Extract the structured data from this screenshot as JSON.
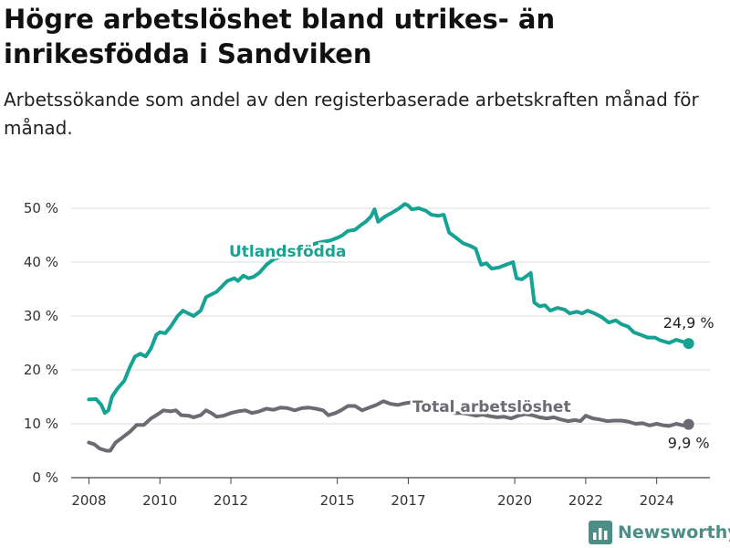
{
  "title": "Högre arbetslöshet bland utrikes- än inrikesfödda i Sandviken",
  "subtitle": "Arbetssökande som andel av den registerbaserade arbetskraften månad för månad.",
  "brand": {
    "name": "Newsworthy",
    "color": "#4a8e86",
    "icon": "bar-chart-logo-icon"
  },
  "chart_data": {
    "type": "line",
    "title": "Högre arbetslöshet bland utrikes- än inrikesfödda i Sandviken",
    "subtitle": "Arbetssökande som andel av den registerbaserade arbetskraften månad för månad.",
    "xlabel": "",
    "ylabel": "",
    "ylim": [
      0,
      50
    ],
    "xlim": [
      2007.5,
      2025.5
    ],
    "y_ticks": [
      0,
      10,
      20,
      30,
      40,
      50
    ],
    "y_tick_labels": [
      "0 %",
      "10 %",
      "20 %",
      "30 %",
      "40 %",
      "50 %"
    ],
    "x_ticks": [
      2008,
      2010,
      2012,
      2015,
      2017,
      2020,
      2022,
      2024
    ],
    "x_tick_labels": [
      "2008",
      "2010",
      "2012",
      "2015",
      "2017",
      "2020",
      "2022",
      "2024"
    ],
    "grid": "horizontal",
    "series": [
      {
        "name": "Utlandsfödda",
        "color": "#16a394",
        "end_label": "24,9 %",
        "points": [
          [
            2008.0,
            14.5
          ],
          [
            2008.2,
            14.6
          ],
          [
            2008.35,
            13.5
          ],
          [
            2008.45,
            12.0
          ],
          [
            2008.55,
            12.5
          ],
          [
            2008.65,
            15.0
          ],
          [
            2008.8,
            16.5
          ],
          [
            2009.0,
            18.0
          ],
          [
            2009.15,
            20.5
          ],
          [
            2009.3,
            22.5
          ],
          [
            2009.45,
            23.0
          ],
          [
            2009.6,
            22.5
          ],
          [
            2009.75,
            24.0
          ],
          [
            2009.9,
            26.5
          ],
          [
            2010.0,
            27.0
          ],
          [
            2010.15,
            26.8
          ],
          [
            2010.3,
            28.0
          ],
          [
            2010.5,
            30.0
          ],
          [
            2010.65,
            31.0
          ],
          [
            2010.8,
            30.5
          ],
          [
            2010.95,
            30.0
          ],
          [
            2011.15,
            31.0
          ],
          [
            2011.3,
            33.5
          ],
          [
            2011.45,
            34.0
          ],
          [
            2011.6,
            34.5
          ],
          [
            2011.75,
            35.5
          ],
          [
            2011.9,
            36.5
          ],
          [
            2012.1,
            37.0
          ],
          [
            2012.2,
            36.5
          ],
          [
            2012.35,
            37.5
          ],
          [
            2012.5,
            37.0
          ],
          [
            2012.65,
            37.3
          ],
          [
            2012.8,
            38.0
          ],
          [
            2013.0,
            39.5
          ],
          [
            2013.2,
            40.5
          ],
          [
            2013.4,
            41.0
          ],
          [
            2013.6,
            41.5
          ],
          [
            2013.8,
            42.0
          ],
          [
            2014.0,
            42.5
          ],
          [
            2014.2,
            43.0
          ],
          [
            2014.4,
            43.5
          ],
          [
            2014.6,
            43.8
          ],
          [
            2014.8,
            44.0
          ],
          [
            2015.0,
            44.5
          ],
          [
            2015.15,
            45.0
          ],
          [
            2015.3,
            45.8
          ],
          [
            2015.5,
            46.0
          ],
          [
            2015.65,
            46.8
          ],
          [
            2015.8,
            47.5
          ],
          [
            2015.95,
            48.5
          ],
          [
            2016.05,
            49.8
          ],
          [
            2016.15,
            47.5
          ],
          [
            2016.35,
            48.5
          ],
          [
            2016.55,
            49.2
          ],
          [
            2016.75,
            50.0
          ],
          [
            2016.9,
            50.8
          ],
          [
            2017.0,
            50.5
          ],
          [
            2017.1,
            49.8
          ],
          [
            2017.3,
            50.0
          ],
          [
            2017.5,
            49.5
          ],
          [
            2017.65,
            48.8
          ],
          [
            2017.85,
            48.6
          ],
          [
            2018.0,
            48.8
          ],
          [
            2018.15,
            45.5
          ],
          [
            2018.35,
            44.5
          ],
          [
            2018.55,
            43.5
          ],
          [
            2018.75,
            43.0
          ],
          [
            2018.9,
            42.5
          ],
          [
            2019.05,
            39.5
          ],
          [
            2019.2,
            39.8
          ],
          [
            2019.35,
            38.8
          ],
          [
            2019.55,
            39.0
          ],
          [
            2019.75,
            39.5
          ],
          [
            2019.95,
            40.0
          ],
          [
            2020.05,
            37.0
          ],
          [
            2020.2,
            36.8
          ],
          [
            2020.35,
            37.5
          ],
          [
            2020.45,
            38.0
          ],
          [
            2020.55,
            32.5
          ],
          [
            2020.7,
            31.8
          ],
          [
            2020.85,
            32.0
          ],
          [
            2021.0,
            31.0
          ],
          [
            2021.2,
            31.5
          ],
          [
            2021.4,
            31.2
          ],
          [
            2021.55,
            30.5
          ],
          [
            2021.75,
            30.8
          ],
          [
            2021.9,
            30.5
          ],
          [
            2022.05,
            31.0
          ],
          [
            2022.25,
            30.5
          ],
          [
            2022.45,
            29.8
          ],
          [
            2022.65,
            28.8
          ],
          [
            2022.85,
            29.2
          ],
          [
            2023.0,
            28.5
          ],
          [
            2023.2,
            28.0
          ],
          [
            2023.35,
            27.0
          ],
          [
            2023.55,
            26.5
          ],
          [
            2023.75,
            26.0
          ],
          [
            2023.95,
            26.0
          ],
          [
            2024.1,
            25.5
          ],
          [
            2024.35,
            25.0
          ],
          [
            2024.55,
            25.6
          ],
          [
            2024.75,
            25.2
          ],
          [
            2024.9,
            24.9
          ]
        ]
      },
      {
        "name": "Total arbetslöshet",
        "color": "#6b6b73",
        "end_label": "9,9 %",
        "points": [
          [
            2008.0,
            6.5
          ],
          [
            2008.15,
            6.2
          ],
          [
            2008.3,
            5.4
          ],
          [
            2008.5,
            5.0
          ],
          [
            2008.6,
            5.0
          ],
          [
            2008.75,
            6.5
          ],
          [
            2008.95,
            7.5
          ],
          [
            2009.15,
            8.5
          ],
          [
            2009.35,
            9.8
          ],
          [
            2009.55,
            9.8
          ],
          [
            2009.75,
            11.0
          ],
          [
            2009.95,
            11.8
          ],
          [
            2010.1,
            12.5
          ],
          [
            2010.3,
            12.3
          ],
          [
            2010.45,
            12.5
          ],
          [
            2010.6,
            11.6
          ],
          [
            2010.8,
            11.5
          ],
          [
            2010.95,
            11.2
          ],
          [
            2011.15,
            11.6
          ],
          [
            2011.3,
            12.5
          ],
          [
            2011.45,
            12.0
          ],
          [
            2011.6,
            11.3
          ],
          [
            2011.8,
            11.5
          ],
          [
            2012.0,
            12.0
          ],
          [
            2012.2,
            12.3
          ],
          [
            2012.4,
            12.5
          ],
          [
            2012.6,
            12.0
          ],
          [
            2012.8,
            12.3
          ],
          [
            2013.0,
            12.8
          ],
          [
            2013.2,
            12.6
          ],
          [
            2013.4,
            13.0
          ],
          [
            2013.6,
            12.9
          ],
          [
            2013.8,
            12.5
          ],
          [
            2014.0,
            12.9
          ],
          [
            2014.2,
            13.0
          ],
          [
            2014.4,
            12.8
          ],
          [
            2014.6,
            12.5
          ],
          [
            2014.75,
            11.6
          ],
          [
            2014.95,
            12.0
          ],
          [
            2015.1,
            12.5
          ],
          [
            2015.3,
            13.3
          ],
          [
            2015.5,
            13.3
          ],
          [
            2015.7,
            12.5
          ],
          [
            2015.9,
            13.0
          ],
          [
            2016.1,
            13.5
          ],
          [
            2016.3,
            14.2
          ],
          [
            2016.5,
            13.7
          ],
          [
            2016.7,
            13.5
          ],
          [
            2016.9,
            13.8
          ],
          [
            2017.1,
            14.0
          ],
          [
            2017.3,
            13.5
          ],
          [
            2017.5,
            13.0
          ],
          [
            2017.7,
            13.5
          ],
          [
            2017.9,
            12.5
          ],
          [
            2018.1,
            12.8
          ],
          [
            2018.3,
            12.0
          ],
          [
            2018.5,
            12.0
          ],
          [
            2018.7,
            11.8
          ],
          [
            2018.9,
            11.5
          ],
          [
            2019.1,
            11.7
          ],
          [
            2019.3,
            11.4
          ],
          [
            2019.5,
            11.2
          ],
          [
            2019.7,
            11.3
          ],
          [
            2019.9,
            11.0
          ],
          [
            2020.1,
            11.5
          ],
          [
            2020.3,
            11.8
          ],
          [
            2020.5,
            11.6
          ],
          [
            2020.7,
            11.2
          ],
          [
            2020.9,
            11.0
          ],
          [
            2021.1,
            11.2
          ],
          [
            2021.3,
            10.8
          ],
          [
            2021.5,
            10.5
          ],
          [
            2021.7,
            10.7
          ],
          [
            2021.85,
            10.5
          ],
          [
            2022.0,
            11.5
          ],
          [
            2022.2,
            11.0
          ],
          [
            2022.4,
            10.8
          ],
          [
            2022.6,
            10.5
          ],
          [
            2022.8,
            10.6
          ],
          [
            2023.0,
            10.6
          ],
          [
            2023.2,
            10.4
          ],
          [
            2023.4,
            10.0
          ],
          [
            2023.6,
            10.1
          ],
          [
            2023.8,
            9.7
          ],
          [
            2024.0,
            10.0
          ],
          [
            2024.2,
            9.7
          ],
          [
            2024.35,
            9.6
          ],
          [
            2024.55,
            10.0
          ],
          [
            2024.75,
            9.7
          ],
          [
            2024.9,
            9.9
          ]
        ]
      }
    ]
  }
}
